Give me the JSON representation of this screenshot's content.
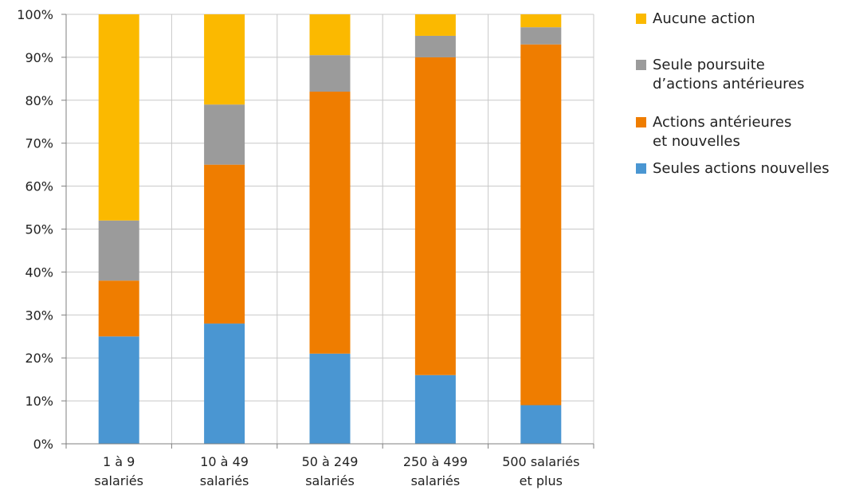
{
  "chart_data": {
    "type": "bar",
    "stacked": true,
    "categories": [
      [
        "1 à 9",
        "salariés"
      ],
      [
        "10 à 49",
        "salariés"
      ],
      [
        "50 à 249",
        "salariés"
      ],
      [
        "250 à 499",
        "salariés"
      ],
      [
        "500 salariés",
        "et plus"
      ]
    ],
    "series": [
      {
        "name": "Seules actions nouvelles",
        "color": "#4a96d2",
        "values": [
          25,
          28,
          21,
          16,
          9
        ]
      },
      {
        "name": "Actions antérieures et nouvelles",
        "color": "#ef7d00",
        "values": [
          13,
          37,
          61,
          74,
          84
        ]
      },
      {
        "name": "Seule poursuite d’actions antérieures",
        "color": "#9b9b9b",
        "values": [
          14,
          14,
          8.5,
          5,
          4
        ]
      },
      {
        "name": "Aucune action",
        "color": "#fbb900",
        "values": [
          48,
          21,
          9.5,
          5,
          3
        ]
      }
    ],
    "y_ticks": [
      "0%",
      "10%",
      "20%",
      "30%",
      "40%",
      "50%",
      "60%",
      "70%",
      "80%",
      "90%",
      "100%"
    ],
    "ylim": [
      0,
      100
    ],
    "grid": true,
    "legend_position": "right"
  },
  "legend": [
    {
      "color": "#fbb900",
      "lines": [
        "Aucune action"
      ]
    },
    {
      "color": "#9b9b9b",
      "lines": [
        "Seule poursuite",
        "d’actions antérieures"
      ]
    },
    {
      "color": "#ef7d00",
      "lines": [
        "Actions antérieures",
        "et nouvelles"
      ]
    },
    {
      "color": "#4a96d2",
      "lines": [
        "Seules actions nouvelles"
      ]
    }
  ]
}
